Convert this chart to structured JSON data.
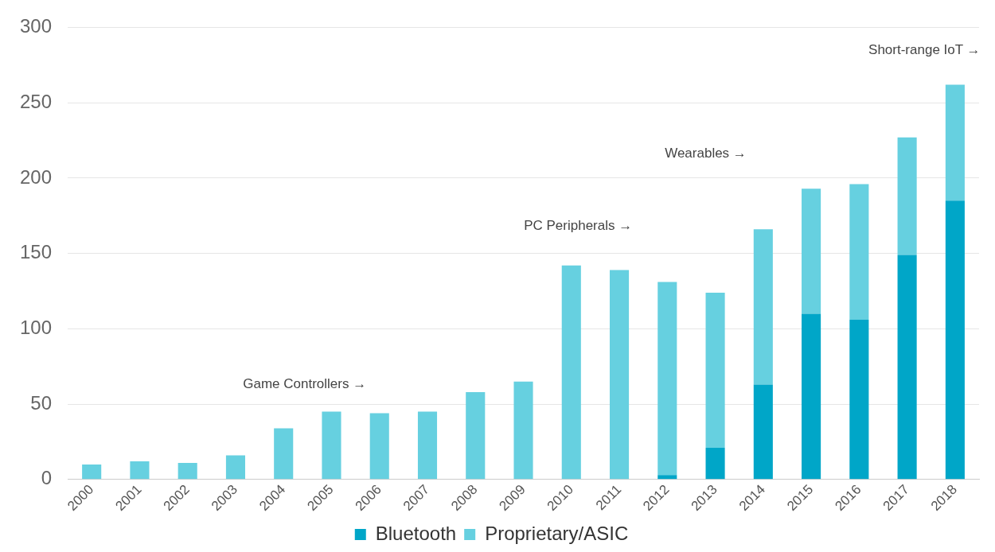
{
  "chart_data": {
    "type": "bar",
    "stacked": true,
    "categories": [
      "2000",
      "2001",
      "2002",
      "2003",
      "2004",
      "2005",
      "2006",
      "2007",
      "2008",
      "2009",
      "2010",
      "2011",
      "2012",
      "2013",
      "2014",
      "2015",
      "2016",
      "2017",
      "2018"
    ],
    "series": [
      {
        "name": "Bluetooth",
        "color": "#00a6c8",
        "values": [
          0,
          0,
          0,
          0,
          0,
          0,
          0,
          0,
          0,
          0,
          0,
          0,
          3,
          21,
          63,
          110,
          106,
          149,
          185
        ]
      },
      {
        "name": "Proprietary/ASIC",
        "color": "#66d0e0",
        "values": [
          10,
          12,
          11,
          16,
          34,
          45,
          44,
          45,
          58,
          65,
          142,
          139,
          128,
          103,
          103,
          83,
          90,
          78,
          77
        ]
      }
    ],
    "ylim": [
      0,
      300
    ],
    "yticks": [
      0,
      50,
      100,
      150,
      200,
      250,
      300
    ],
    "grid": "y",
    "legend": "bottom",
    "annotations": [
      "Game Controllers →",
      "PC Peripherals →",
      "Wearables →",
      "Short-range IoT →"
    ]
  }
}
